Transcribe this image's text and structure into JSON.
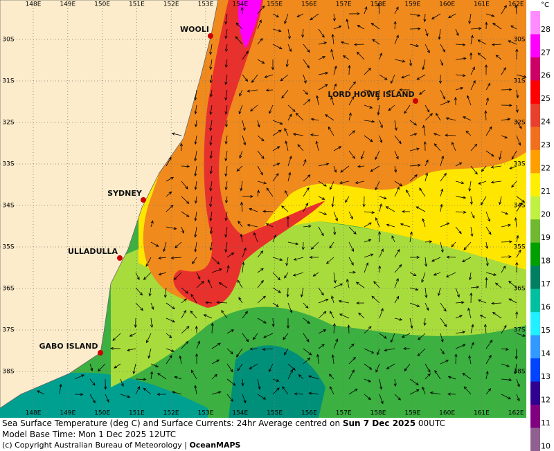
{
  "map": {
    "lon_labels": [
      "148E",
      "149E",
      "150E",
      "151E",
      "152E",
      "153E",
      "154E",
      "155E",
      "156E",
      "157E",
      "158E",
      "159E",
      "160E",
      "161E",
      "162E"
    ],
    "lat_labels_left": [
      "30S",
      "31S",
      "32S",
      "33S",
      "34S",
      "35S",
      "36S",
      "37S",
      "38S"
    ],
    "lat_labels_right": [
      "30S",
      "31S",
      "32S",
      "33S",
      "34S",
      "35S",
      "36S",
      "37S",
      "38S"
    ],
    "places": [
      "WOOLI",
      "LORD HOWE ISLAND",
      "SYDNEY",
      "ULLADULLA",
      "GABO ISLAND"
    ]
  },
  "colorbar": {
    "unit": "°C",
    "levels": [
      {
        "label": "28",
        "color": "#ff8cff"
      },
      {
        "label": "27",
        "color": "#ff00ff"
      },
      {
        "label": "26",
        "color": "#cc0066"
      },
      {
        "label": "25",
        "color": "#ff0000"
      },
      {
        "label": "24",
        "color": "#e8402c"
      },
      {
        "label": "23",
        "color": "#f07020"
      },
      {
        "label": "22",
        "color": "#ffa000"
      },
      {
        "label": "21",
        "color": "#ffee00"
      },
      {
        "label": "20",
        "color": "#c0f040"
      },
      {
        "label": "19",
        "color": "#70b830"
      },
      {
        "label": "18",
        "color": "#00a000"
      },
      {
        "label": "17",
        "color": "#008060"
      },
      {
        "label": "16",
        "color": "#00c0a0"
      },
      {
        "label": "15",
        "color": "#20f0ff"
      },
      {
        "label": "14",
        "color": "#3399ff"
      },
      {
        "label": "13",
        "color": "#0044ff"
      },
      {
        "label": "12",
        "color": "#300090"
      },
      {
        "label": "11",
        "color": "#800080"
      },
      {
        "label": "10",
        "color": "#906090"
      }
    ]
  },
  "caption": {
    "line1_prefix": "Sea Surface Temperature (deg C) and Surface Currents: 24hr Average centred on ",
    "line1_date": "Sun 7 Dec 2025",
    "line1_suffix": " 00UTC",
    "line2": "Model Base Time: Mon 1 Dec 2025 12UTC",
    "line3_prefix": "(c) Copyright Australian Bureau of Meteorology | ",
    "line3_brand": "OceanMAPS"
  }
}
